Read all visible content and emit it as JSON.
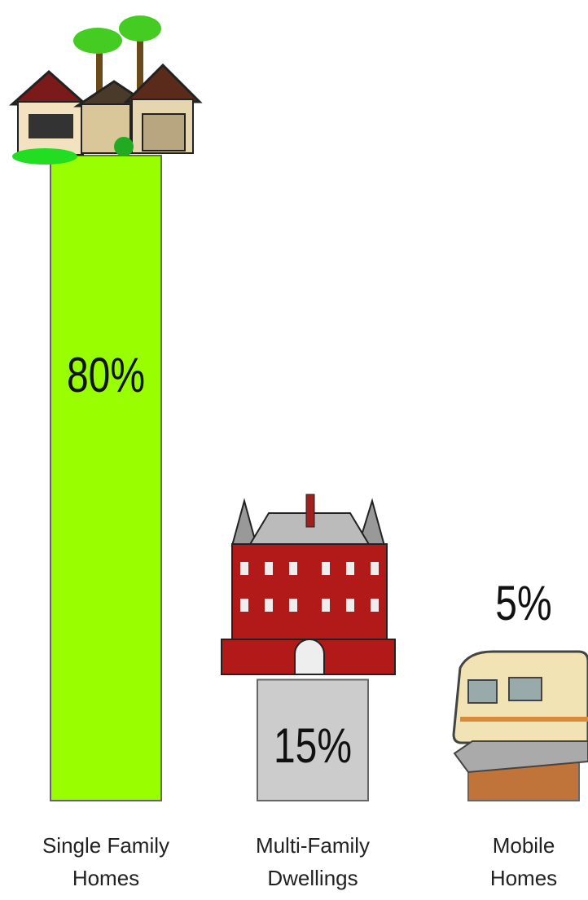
{
  "chart_data": {
    "type": "bar",
    "categories": [
      "Single Family Homes",
      "Multi-Family Dwellings",
      "Mobile Homes"
    ],
    "values": [
      80,
      15,
      5
    ],
    "value_labels": [
      "80%",
      "15%",
      "5%"
    ],
    "colors": [
      "#99ff00",
      "#cccccc",
      "#c0743a"
    ]
  }
}
